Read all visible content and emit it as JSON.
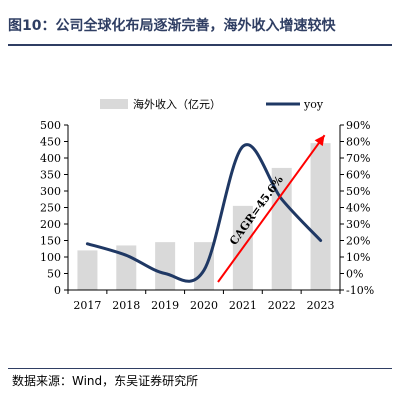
{
  "header": {
    "title": "图10：公司全球化布局逐渐完善，海外收入增速较快"
  },
  "source": "数据来源：Wind，东吴证券研究所",
  "chart_data": {
    "type": "bar",
    "categories": [
      "2017",
      "2018",
      "2019",
      "2020",
      "2021",
      "2022",
      "2023"
    ],
    "series": [
      {
        "name": "海外收入（亿元）",
        "type": "bar",
        "axis": "left",
        "color": "#d9d9d9",
        "values": [
          120,
          135,
          145,
          145,
          255,
          370,
          445
        ]
      },
      {
        "name": "yoy",
        "type": "line",
        "axis": "right",
        "color": "#1f3864",
        "values": [
          18,
          11,
          0,
          2,
          77,
          45,
          20
        ]
      }
    ],
    "y_left": {
      "lim": [
        0,
        500
      ],
      "ticks": [
        "0",
        "50",
        "100",
        "150",
        "200",
        "250",
        "300",
        "350",
        "400",
        "450",
        "500"
      ]
    },
    "y_right": {
      "lim": [
        -10,
        90
      ],
      "ticks": [
        "-10%",
        "0%",
        "10%",
        "20%",
        "30%",
        "40%",
        "50%",
        "60%",
        "70%",
        "80%",
        "90%"
      ]
    },
    "legend_position": "top",
    "annotation": {
      "text": "CAGR=45.6%",
      "color": "#ff0000"
    },
    "grid": false
  }
}
